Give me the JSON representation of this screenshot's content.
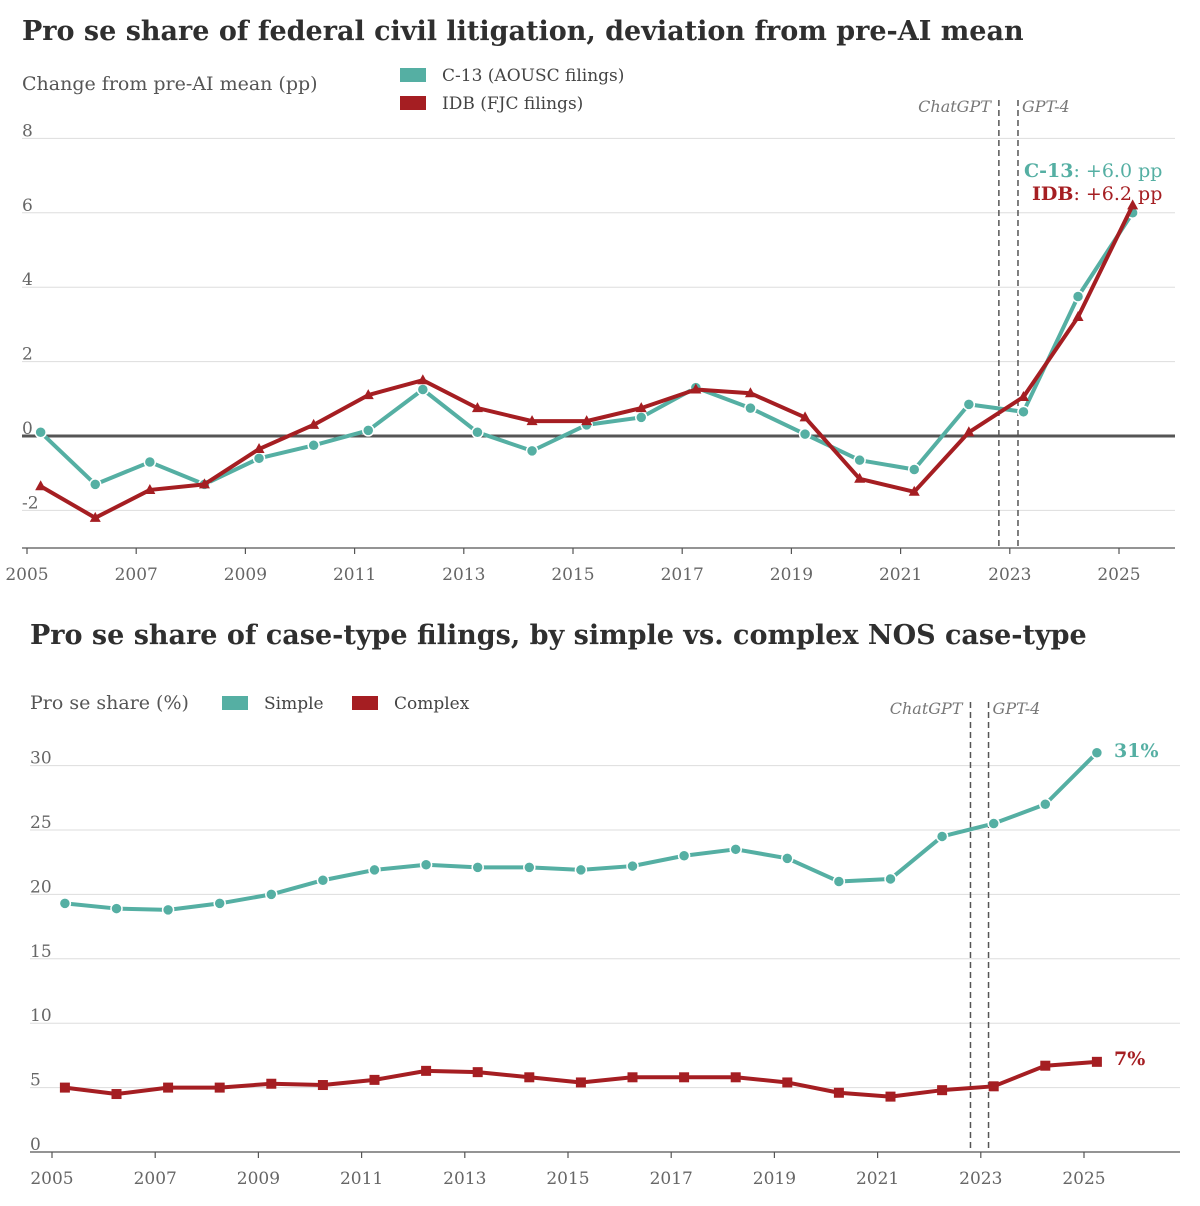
{
  "colors": {
    "teal": "#55afa3",
    "red": "#a51e22",
    "grid": "#dddddd",
    "zero": "#555555"
  },
  "charts": {
    "c1": {
      "title": "Pro se share of federal civil litigation, deviation from pre-AI mean",
      "ylabel": "Change from pre-AI mean (pp)",
      "end_labels": {
        "teal_name": "C-13",
        "teal_value": ": +6.0 pp",
        "red_name": "IDB",
        "red_value": ": +6.2 pp"
      }
    },
    "c2": {
      "title": "Pro se share of case-type filings, by simple vs. complex NOS case-type",
      "ylabel": "Pro se share (%)",
      "end_labels": {
        "simple": "31%",
        "complex": "7%"
      }
    }
  },
  "chart_data": [
    {
      "type": "line",
      "title": "Pro se share of federal civil litigation, deviation from pre-AI mean",
      "ylabel": "Change from pre-AI mean (pp)",
      "xlim": [
        2005,
        2026
      ],
      "ylim": [
        -3,
        8.5
      ],
      "xticks": [
        "2005",
        "2007",
        "2009",
        "2011",
        "2013",
        "2015",
        "2017",
        "2019",
        "2021",
        "2023",
        "2025"
      ],
      "yticks": [
        "8",
        "6",
        "4",
        "2",
        "0",
        "-2"
      ],
      "grid": true,
      "legend_position": "top-left",
      "events": [
        {
          "label": "ChatGPT",
          "x": 2022.8
        },
        {
          "label": "GPT-4",
          "x": 2023.15
        }
      ],
      "series": [
        {
          "name": "C-13 (AOUSC filings)",
          "color": "#55afa3",
          "marker": "circle",
          "x": [
            2005.25,
            2006.25,
            2007.25,
            2008.25,
            2009.25,
            2010.25,
            2011.25,
            2012.25,
            2013.25,
            2014.25,
            2015.25,
            2016.25,
            2017.25,
            2018.25,
            2019.25,
            2020.25,
            2021.25,
            2022.25,
            2023.25,
            2024.25,
            2025.25
          ],
          "y": [
            0.1,
            -1.3,
            -0.7,
            -1.3,
            -0.6,
            -0.25,
            0.15,
            1.25,
            0.1,
            -0.4,
            0.3,
            0.5,
            1.3,
            0.75,
            0.05,
            -0.65,
            -0.9,
            0.85,
            0.65,
            3.75,
            6.0
          ]
        },
        {
          "name": "IDB (FJC filings)",
          "color": "#a51e22",
          "marker": "triangle",
          "x": [
            2005.25,
            2006.25,
            2007.25,
            2008.25,
            2009.25,
            2010.25,
            2011.25,
            2012.25,
            2013.25,
            2014.25,
            2015.25,
            2016.25,
            2017.25,
            2018.25,
            2019.25,
            2020.25,
            2021.25,
            2022.25,
            2023.25,
            2024.25,
            2025.25
          ],
          "y": [
            -1.35,
            -2.2,
            -1.45,
            -1.3,
            -0.35,
            0.3,
            1.1,
            1.5,
            0.75,
            0.4,
            0.4,
            0.75,
            1.25,
            1.15,
            0.5,
            -1.15,
            -1.5,
            0.1,
            1.05,
            3.2,
            6.2
          ]
        }
      ]
    },
    {
      "type": "line",
      "title": "Pro se share of case-type filings, by simple vs. complex NOS case-type",
      "ylabel": "Pro se share (%)",
      "xlim": [
        2005,
        2026
      ],
      "ylim": [
        0,
        34
      ],
      "xticks": [
        "2005",
        "2007",
        "2009",
        "2011",
        "2013",
        "2015",
        "2017",
        "2019",
        "2021",
        "2023",
        "2025"
      ],
      "yticks": [
        "30",
        "25",
        "20",
        "15",
        "10",
        "5",
        "0"
      ],
      "grid": true,
      "legend_position": "top-left",
      "events": [
        {
          "label": "ChatGPT",
          "x": 2022.8
        },
        {
          "label": "GPT-4",
          "x": 2023.15
        }
      ],
      "series": [
        {
          "name": "Simple",
          "color": "#55afa3",
          "marker": "circle",
          "x": [
            2005.25,
            2006.25,
            2007.25,
            2008.25,
            2009.25,
            2010.25,
            2011.25,
            2012.25,
            2013.25,
            2014.25,
            2015.25,
            2016.25,
            2017.25,
            2018.25,
            2019.25,
            2020.25,
            2021.25,
            2022.25,
            2023.25,
            2024.25,
            2025.25
          ],
          "y": [
            19.3,
            18.9,
            18.8,
            19.3,
            20.0,
            21.1,
            21.9,
            22.3,
            22.1,
            22.1,
            21.9,
            22.2,
            23.0,
            23.5,
            22.8,
            21.0,
            21.2,
            24.5,
            25.5,
            27.0,
            31.0
          ]
        },
        {
          "name": "Complex",
          "color": "#a51e22",
          "marker": "square",
          "x": [
            2005.25,
            2006.25,
            2007.25,
            2008.25,
            2009.25,
            2010.25,
            2011.25,
            2012.25,
            2013.25,
            2014.25,
            2015.25,
            2016.25,
            2017.25,
            2018.25,
            2019.25,
            2020.25,
            2021.25,
            2022.25,
            2023.25,
            2024.25,
            2025.25
          ],
          "y": [
            5.0,
            4.5,
            5.0,
            5.0,
            5.3,
            5.2,
            5.6,
            6.3,
            6.2,
            5.8,
            5.4,
            5.8,
            5.8,
            5.8,
            5.4,
            4.6,
            4.3,
            4.8,
            5.1,
            6.7,
            7.0
          ]
        }
      ]
    }
  ]
}
